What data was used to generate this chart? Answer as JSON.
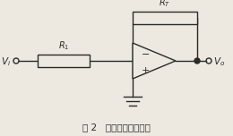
{
  "title": "图 2   基本恒流源电路图",
  "bg_color": "#ede9e0",
  "line_color": "#2a2a2a",
  "R1_label": "$R_1$",
  "RT_label": "$R_T$",
  "Vi_label": "$V_i$",
  "Vo_label": "$V_o$",
  "minus_label": "−",
  "plus_label": "+"
}
